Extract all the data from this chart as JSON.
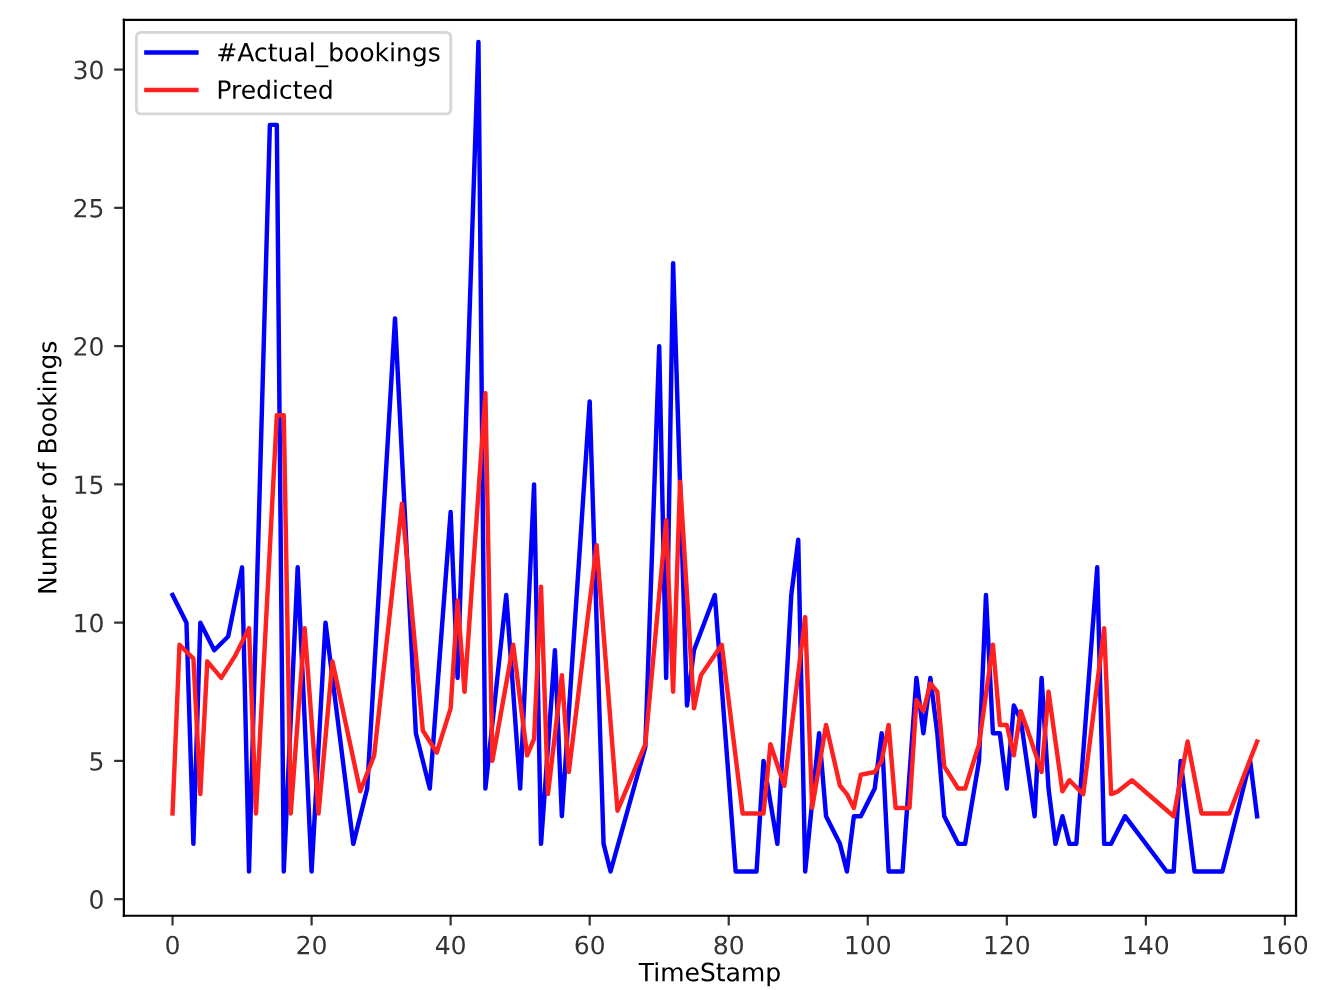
{
  "chart_data": {
    "type": "line",
    "xlabel": "TimeStamp",
    "ylabel": "Number of Bookings",
    "xlim": [
      -7,
      161.6
    ],
    "ylim": [
      -0.6,
      31.8
    ],
    "xticks": [
      0,
      20,
      40,
      60,
      80,
      100,
      120,
      140,
      160
    ],
    "yticks": [
      0,
      5,
      10,
      15,
      20,
      25,
      30
    ],
    "grid": false,
    "legend": "top left",
    "marker": "none",
    "line_style": "solid",
    "series": [
      {
        "name": "#Actual_bookings",
        "color": "#0000ff",
        "x": [
          0,
          2,
          3,
          4,
          6,
          8,
          10,
          11,
          14,
          15,
          16,
          18,
          20,
          22,
          26,
          28,
          32,
          35,
          37,
          40,
          41,
          44,
          45,
          48,
          50,
          52,
          53,
          55,
          56,
          60,
          62,
          63,
          68,
          70,
          71,
          72,
          74,
          75,
          78,
          81,
          84,
          85,
          87,
          89,
          90,
          91,
          93,
          94,
          96,
          97,
          98,
          99,
          101,
          102,
          103,
          105,
          107,
          108,
          109,
          110,
          111,
          113,
          114,
          116,
          117,
          118,
          119,
          120,
          121,
          122,
          124,
          125,
          126,
          127,
          128,
          129,
          130,
          133,
          134,
          135,
          137,
          143,
          144,
          145,
          147,
          151,
          155,
          156
        ],
        "values": [
          11,
          10,
          2,
          10,
          9,
          9.5,
          12,
          1,
          28,
          28,
          1,
          12,
          1,
          10,
          2,
          4,
          21,
          6,
          4,
          14,
          8,
          31,
          4,
          11,
          4,
          15,
          2,
          9,
          3,
          18,
          2,
          1,
          5.5,
          20,
          8,
          23,
          7,
          9,
          11,
          1,
          1,
          5,
          2,
          11,
          13,
          1,
          6,
          3,
          2,
          1,
          3,
          3,
          4,
          6,
          1,
          1,
          8,
          6,
          8,
          6,
          3,
          2,
          2,
          5,
          11,
          6,
          6,
          4,
          7,
          6.5,
          3,
          8,
          4,
          2,
          3,
          2,
          2,
          12,
          2,
          2,
          3,
          1,
          1,
          5,
          1,
          1,
          5,
          3
        ]
      },
      {
        "name": "Predicted",
        "color": "#ff2020",
        "x": [
          0,
          1,
          3,
          4,
          5,
          7,
          9,
          11,
          12,
          15,
          16,
          17,
          19,
          21,
          23,
          27,
          29,
          33,
          36,
          38,
          40,
          41,
          42,
          45,
          46,
          49,
          51,
          52,
          53,
          54,
          56,
          57,
          61,
          64,
          68,
          71,
          72,
          73,
          75,
          76,
          79,
          82,
          85,
          86,
          88,
          91,
          92,
          94,
          96,
          97,
          98,
          99,
          101,
          102,
          103,
          104,
          106,
          107,
          108,
          109,
          110,
          111,
          113,
          114,
          116,
          118,
          119,
          120,
          121,
          122,
          123,
          125,
          126,
          128,
          129,
          131,
          134,
          135,
          136,
          138,
          144,
          146,
          148,
          152,
          156
        ],
        "values": [
          3.1,
          9.2,
          8.7,
          3.8,
          8.6,
          8,
          8.8,
          9.8,
          3.1,
          17.5,
          17.5,
          3.1,
          9.8,
          3.1,
          8.6,
          3.9,
          5.2,
          14.3,
          6.1,
          5.3,
          6.9,
          10.8,
          7.5,
          18.3,
          5,
          9.2,
          5.2,
          5.8,
          11.3,
          3.8,
          8.1,
          4.6,
          12.8,
          3.2,
          5.6,
          13.7,
          7.5,
          15.1,
          6.9,
          8.1,
          9.2,
          3.1,
          3.1,
          5.6,
          4.1,
          10.2,
          3.3,
          6.3,
          4.1,
          3.8,
          3.3,
          4.5,
          4.6,
          5,
          6.3,
          3.3,
          3.3,
          7.2,
          6.8,
          7.8,
          7.5,
          4.8,
          4,
          4,
          5.6,
          9.2,
          6.3,
          6.3,
          5.2,
          6.8,
          6.1,
          4.6,
          7.5,
          3.9,
          4.3,
          3.8,
          9.8,
          3.8,
          3.9,
          4.3,
          3,
          5.7,
          3.1,
          3.1,
          5.7
        ]
      }
    ]
  }
}
